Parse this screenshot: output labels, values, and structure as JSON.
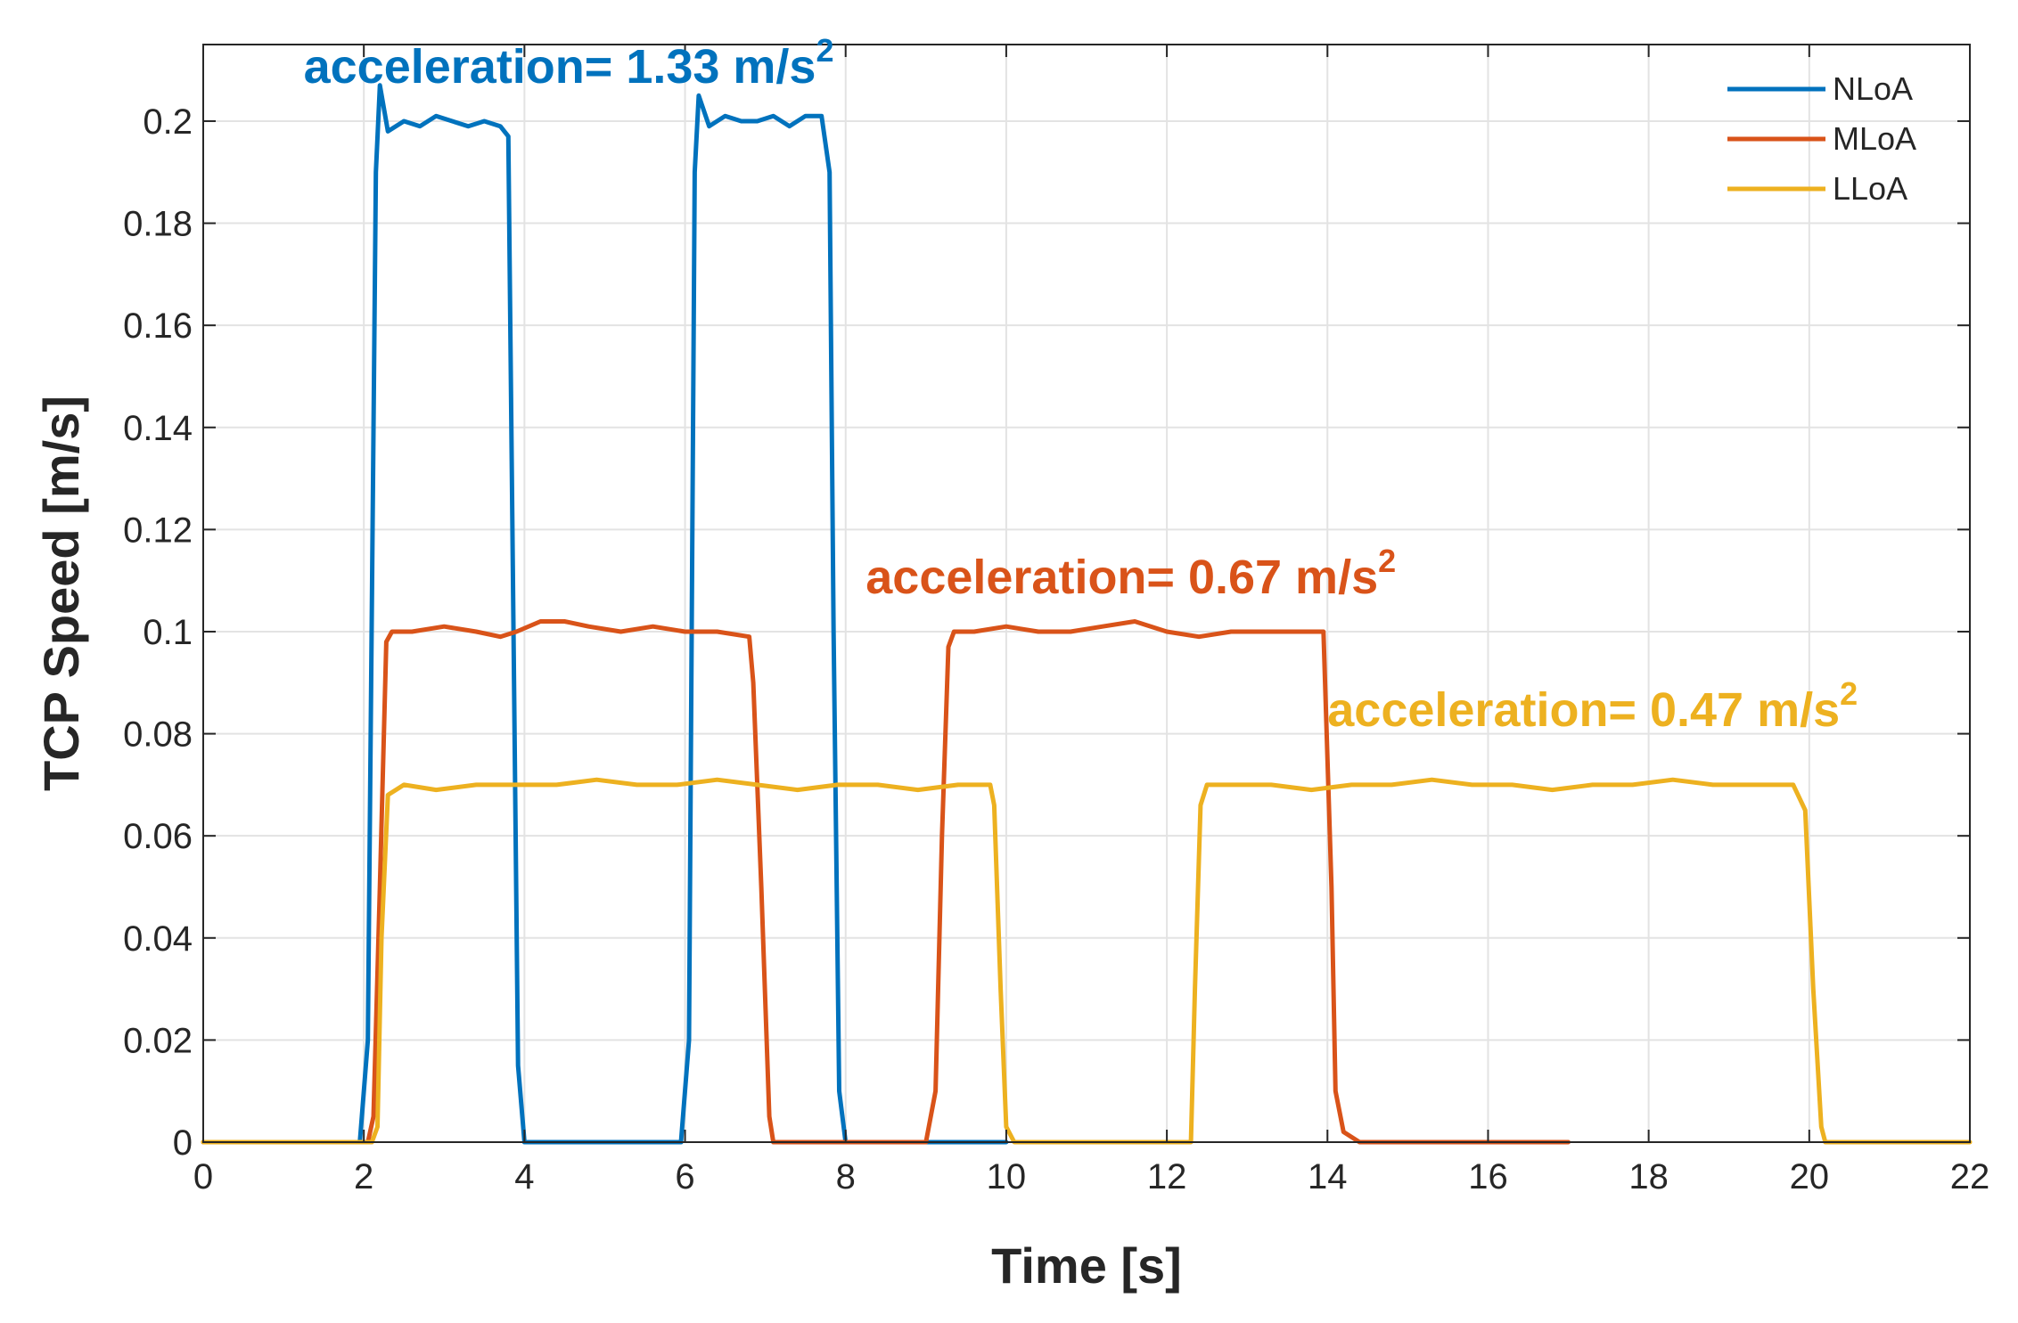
{
  "chart_data": {
    "type": "line",
    "title": "",
    "xlabel": "Time [s]",
    "ylabel": "TCP Speed [m/s]",
    "xlim": [
      0,
      22
    ],
    "ylim": [
      0,
      0.215
    ],
    "grid": true,
    "x_ticks": [
      0,
      2,
      4,
      6,
      8,
      10,
      12,
      14,
      16,
      18,
      20,
      22
    ],
    "x_tick_labels": [
      "0",
      "2",
      "4",
      "6",
      "8",
      "10",
      "12",
      "14",
      "16",
      "18",
      "20",
      "22"
    ],
    "y_ticks": [
      0,
      0.02,
      0.04,
      0.06,
      0.08,
      0.1,
      0.12,
      0.14,
      0.16,
      0.18,
      0.2
    ],
    "y_tick_labels": [
      "0",
      "0.02",
      "0.04",
      "0.06",
      "0.08",
      "0.1",
      "0.12",
      "0.14",
      "0.16",
      "0.18",
      "0.2"
    ],
    "legend_position": "top-right",
    "series": [
      {
        "name": "NLoA",
        "color": "#0072BD",
        "x": [
          0,
          1.95,
          2.05,
          2.15,
          2.2,
          2.3,
          2.5,
          2.7,
          2.9,
          3.1,
          3.3,
          3.5,
          3.7,
          3.8,
          3.85,
          3.92,
          4.0,
          4.2,
          5.0,
          5.95,
          6.05,
          6.12,
          6.17,
          6.3,
          6.5,
          6.7,
          6.9,
          7.1,
          7.3,
          7.5,
          7.7,
          7.8,
          7.85,
          7.92,
          8.0,
          9.0,
          10.0
        ],
        "y": [
          0,
          0,
          0.02,
          0.19,
          0.207,
          0.198,
          0.2,
          0.199,
          0.201,
          0.2,
          0.199,
          0.2,
          0.199,
          0.197,
          0.12,
          0.015,
          0,
          0,
          0,
          0,
          0.02,
          0.19,
          0.205,
          0.199,
          0.201,
          0.2,
          0.2,
          0.201,
          0.199,
          0.201,
          0.201,
          0.19,
          0.1,
          0.01,
          0,
          0,
          0
        ]
      },
      {
        "name": "MLoA",
        "color": "#D95319",
        "x": [
          0,
          2.05,
          2.12,
          2.2,
          2.28,
          2.35,
          2.6,
          3.0,
          3.4,
          3.7,
          3.9,
          4.2,
          4.5,
          4.8,
          5.2,
          5.6,
          6.0,
          6.4,
          6.8,
          6.85,
          6.95,
          7.05,
          7.1,
          7.5,
          8.0,
          9.0,
          9.12,
          9.2,
          9.28,
          9.35,
          9.6,
          10.0,
          10.4,
          10.8,
          11.2,
          11.6,
          12.0,
          12.4,
          12.8,
          13.2,
          13.6,
          13.95,
          14.05,
          14.1,
          14.2,
          14.4,
          15.0,
          16.0,
          17.0
        ],
        "y": [
          0,
          0,
          0.005,
          0.05,
          0.098,
          0.1,
          0.1,
          0.101,
          0.1,
          0.099,
          0.1,
          0.102,
          0.102,
          0.101,
          0.1,
          0.101,
          0.1,
          0.1,
          0.099,
          0.09,
          0.05,
          0.005,
          0,
          0,
          0,
          0,
          0.01,
          0.06,
          0.097,
          0.1,
          0.1,
          0.101,
          0.1,
          0.1,
          0.101,
          0.102,
          0.1,
          0.099,
          0.1,
          0.1,
          0.1,
          0.1,
          0.05,
          0.01,
          0.002,
          0,
          0,
          0,
          0
        ]
      },
      {
        "name": "LLoA",
        "color": "#EDB120",
        "x": [
          0,
          2.1,
          2.17,
          2.22,
          2.3,
          2.5,
          2.9,
          3.4,
          3.9,
          4.4,
          4.9,
          5.4,
          5.9,
          6.4,
          6.9,
          7.4,
          7.9,
          8.4,
          8.9,
          9.4,
          9.8,
          9.85,
          9.93,
          10.0,
          10.1,
          11.0,
          12.0,
          12.3,
          12.35,
          12.42,
          12.5,
          12.8,
          13.3,
          13.8,
          14.3,
          14.8,
          15.3,
          15.8,
          16.3,
          16.8,
          17.3,
          17.8,
          18.3,
          18.8,
          19.3,
          19.8,
          19.95,
          20.05,
          20.15,
          20.2,
          21.0,
          22.0
        ],
        "y": [
          0,
          0,
          0.003,
          0.04,
          0.068,
          0.07,
          0.069,
          0.07,
          0.07,
          0.07,
          0.071,
          0.07,
          0.07,
          0.071,
          0.07,
          0.069,
          0.07,
          0.07,
          0.069,
          0.07,
          0.07,
          0.066,
          0.03,
          0.003,
          0,
          0,
          0,
          0,
          0.03,
          0.066,
          0.07,
          0.07,
          0.07,
          0.069,
          0.07,
          0.07,
          0.071,
          0.07,
          0.07,
          0.069,
          0.07,
          0.07,
          0.071,
          0.07,
          0.07,
          0.07,
          0.065,
          0.03,
          0.003,
          0,
          0,
          0
        ]
      }
    ],
    "annotations": [
      {
        "text": "acceleration= 1.33 m/s",
        "superscript": "2",
        "color": "#0072BD",
        "x": 1.25,
        "y": 0.2075
      },
      {
        "text": "acceleration= 0.67 m/s",
        "superscript": "2",
        "color": "#D95319",
        "x": 8.25,
        "y": 0.1075
      },
      {
        "text": "acceleration= 0.47 m/s",
        "superscript": "2",
        "color": "#EDB120",
        "x": 14.0,
        "y": 0.0815
      }
    ]
  }
}
